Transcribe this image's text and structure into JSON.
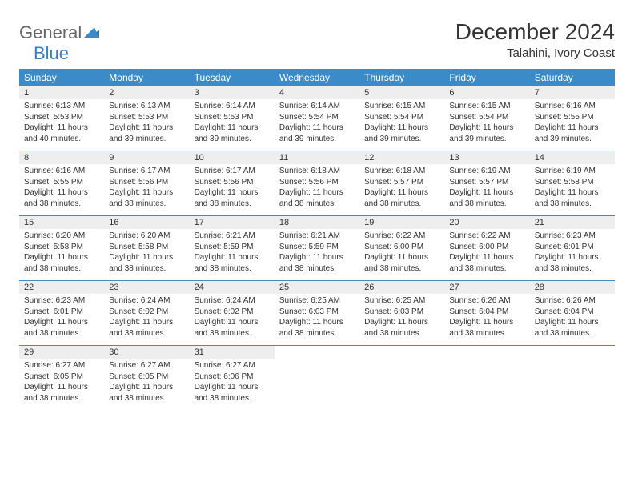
{
  "brand": {
    "part1": "General",
    "part2": "Blue"
  },
  "title": "December 2024",
  "location": "Talahini, Ivory Coast",
  "colors": {
    "header_bg": "#3b8bc9",
    "header_text": "#ffffff",
    "daynum_bg": "#eeeeee",
    "text": "#333333",
    "logo_gray": "#666666",
    "logo_blue": "#3a7cc4",
    "page_bg": "#ffffff"
  },
  "typography": {
    "title_fontsize": 28,
    "location_fontsize": 15,
    "header_fontsize": 12,
    "daynum_fontsize": 11,
    "detail_fontsize": 10
  },
  "day_headers": [
    "Sunday",
    "Monday",
    "Tuesday",
    "Wednesday",
    "Thursday",
    "Friday",
    "Saturday"
  ],
  "weeks": [
    [
      {
        "n": "1",
        "sr": "6:13 AM",
        "ss": "5:53 PM",
        "dl": "11 hours and 40 minutes."
      },
      {
        "n": "2",
        "sr": "6:13 AM",
        "ss": "5:53 PM",
        "dl": "11 hours and 39 minutes."
      },
      {
        "n": "3",
        "sr": "6:14 AM",
        "ss": "5:53 PM",
        "dl": "11 hours and 39 minutes."
      },
      {
        "n": "4",
        "sr": "6:14 AM",
        "ss": "5:54 PM",
        "dl": "11 hours and 39 minutes."
      },
      {
        "n": "5",
        "sr": "6:15 AM",
        "ss": "5:54 PM",
        "dl": "11 hours and 39 minutes."
      },
      {
        "n": "6",
        "sr": "6:15 AM",
        "ss": "5:54 PM",
        "dl": "11 hours and 39 minutes."
      },
      {
        "n": "7",
        "sr": "6:16 AM",
        "ss": "5:55 PM",
        "dl": "11 hours and 39 minutes."
      }
    ],
    [
      {
        "n": "8",
        "sr": "6:16 AM",
        "ss": "5:55 PM",
        "dl": "11 hours and 38 minutes."
      },
      {
        "n": "9",
        "sr": "6:17 AM",
        "ss": "5:56 PM",
        "dl": "11 hours and 38 minutes."
      },
      {
        "n": "10",
        "sr": "6:17 AM",
        "ss": "5:56 PM",
        "dl": "11 hours and 38 minutes."
      },
      {
        "n": "11",
        "sr": "6:18 AM",
        "ss": "5:56 PM",
        "dl": "11 hours and 38 minutes."
      },
      {
        "n": "12",
        "sr": "6:18 AM",
        "ss": "5:57 PM",
        "dl": "11 hours and 38 minutes."
      },
      {
        "n": "13",
        "sr": "6:19 AM",
        "ss": "5:57 PM",
        "dl": "11 hours and 38 minutes."
      },
      {
        "n": "14",
        "sr": "6:19 AM",
        "ss": "5:58 PM",
        "dl": "11 hours and 38 minutes."
      }
    ],
    [
      {
        "n": "15",
        "sr": "6:20 AM",
        "ss": "5:58 PM",
        "dl": "11 hours and 38 minutes."
      },
      {
        "n": "16",
        "sr": "6:20 AM",
        "ss": "5:58 PM",
        "dl": "11 hours and 38 minutes."
      },
      {
        "n": "17",
        "sr": "6:21 AM",
        "ss": "5:59 PM",
        "dl": "11 hours and 38 minutes."
      },
      {
        "n": "18",
        "sr": "6:21 AM",
        "ss": "5:59 PM",
        "dl": "11 hours and 38 minutes."
      },
      {
        "n": "19",
        "sr": "6:22 AM",
        "ss": "6:00 PM",
        "dl": "11 hours and 38 minutes."
      },
      {
        "n": "20",
        "sr": "6:22 AM",
        "ss": "6:00 PM",
        "dl": "11 hours and 38 minutes."
      },
      {
        "n": "21",
        "sr": "6:23 AM",
        "ss": "6:01 PM",
        "dl": "11 hours and 38 minutes."
      }
    ],
    [
      {
        "n": "22",
        "sr": "6:23 AM",
        "ss": "6:01 PM",
        "dl": "11 hours and 38 minutes."
      },
      {
        "n": "23",
        "sr": "6:24 AM",
        "ss": "6:02 PM",
        "dl": "11 hours and 38 minutes."
      },
      {
        "n": "24",
        "sr": "6:24 AM",
        "ss": "6:02 PM",
        "dl": "11 hours and 38 minutes."
      },
      {
        "n": "25",
        "sr": "6:25 AM",
        "ss": "6:03 PM",
        "dl": "11 hours and 38 minutes."
      },
      {
        "n": "26",
        "sr": "6:25 AM",
        "ss": "6:03 PM",
        "dl": "11 hours and 38 minutes."
      },
      {
        "n": "27",
        "sr": "6:26 AM",
        "ss": "6:04 PM",
        "dl": "11 hours and 38 minutes."
      },
      {
        "n": "28",
        "sr": "6:26 AM",
        "ss": "6:04 PM",
        "dl": "11 hours and 38 minutes."
      }
    ],
    [
      {
        "n": "29",
        "sr": "6:27 AM",
        "ss": "6:05 PM",
        "dl": "11 hours and 38 minutes."
      },
      {
        "n": "30",
        "sr": "6:27 AM",
        "ss": "6:05 PM",
        "dl": "11 hours and 38 minutes."
      },
      {
        "n": "31",
        "sr": "6:27 AM",
        "ss": "6:06 PM",
        "dl": "11 hours and 38 minutes."
      },
      null,
      null,
      null,
      null
    ]
  ],
  "labels": {
    "sunrise": "Sunrise: ",
    "sunset": "Sunset: ",
    "daylight": "Daylight: "
  }
}
